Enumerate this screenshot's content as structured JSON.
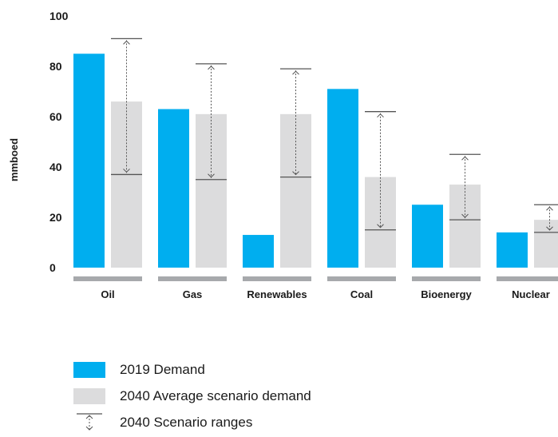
{
  "chart_data": {
    "type": "bar",
    "title": "",
    "xlabel": "",
    "ylabel": "mmboed",
    "ylim": [
      0,
      100
    ],
    "yticks": [
      0,
      20,
      40,
      60,
      80,
      100
    ],
    "grid": false,
    "legend_position": "bottom-left",
    "categories": [
      "Oil",
      "Gas",
      "Renewables",
      "Coal",
      "Bioenergy",
      "Nuclear"
    ],
    "series": [
      {
        "name": "2019 Demand",
        "values": [
          85,
          63,
          13,
          71,
          25,
          14
        ],
        "color": "#00aeef"
      },
      {
        "name": "2040 Average scenario demand",
        "values": [
          66,
          61,
          61,
          36,
          33,
          19
        ],
        "color": "#dcdcdd"
      }
    ],
    "ranges": {
      "name": "2040 Scenario ranges",
      "low": [
        37,
        35,
        36,
        15,
        19,
        14
      ],
      "high": [
        91,
        81,
        79,
        62,
        45,
        25
      ]
    },
    "category_bar_color": "#a7a9ac"
  }
}
